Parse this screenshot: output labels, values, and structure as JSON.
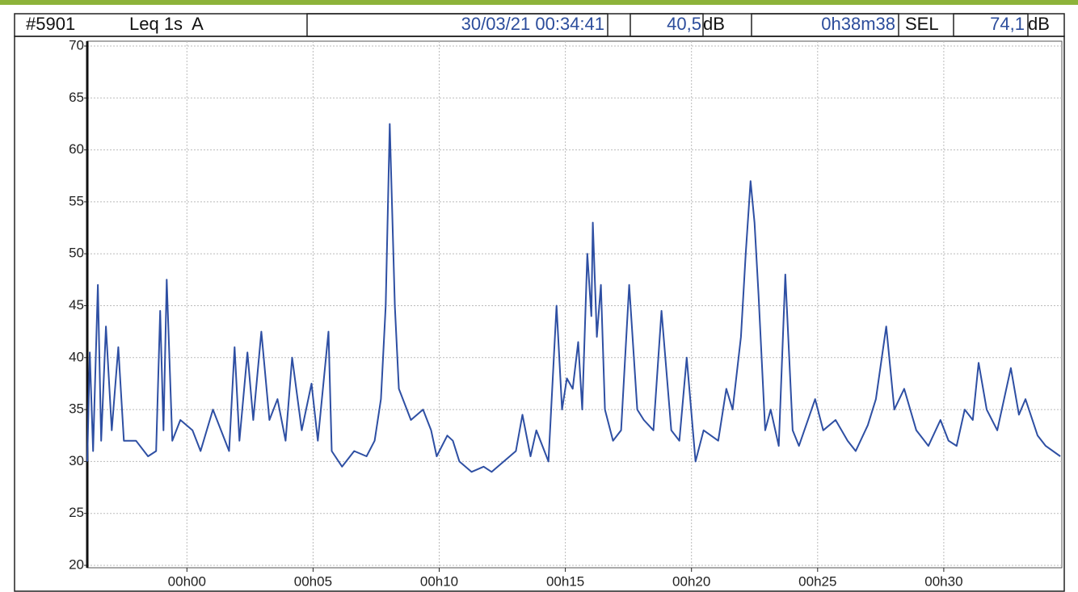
{
  "chart_data": {
    "type": "line",
    "title": "#5901",
    "subtitle": "Leq 1s  A",
    "annotations": [
      "30/03/21 00:34:41",
      "40,5",
      "dB",
      "0h38m38",
      "SEL",
      "74,1",
      "dB"
    ],
    "color": "#2e4fa3",
    "grid": true,
    "xlim": [
      -3.95,
      34.68
    ],
    "ylim": [
      20,
      70
    ],
    "yticks": [
      20,
      25,
      30,
      35,
      40,
      45,
      50,
      55,
      60,
      65,
      70
    ],
    "xticks": [
      {
        "value": 0,
        "label": "00h00"
      },
      {
        "value": 5,
        "label": "00h05"
      },
      {
        "value": 10,
        "label": "00h10"
      },
      {
        "value": 15,
        "label": "00h15"
      },
      {
        "value": 20,
        "label": "00h20"
      },
      {
        "value": 25,
        "label": "00h25"
      },
      {
        "value": 30,
        "label": "00h30"
      }
    ],
    "x": [
      -3.95,
      -3.85,
      -3.72,
      -3.53,
      -3.4,
      -3.21,
      -2.98,
      -2.72,
      -2.5,
      -2.02,
      -1.54,
      -1.22,
      -1.06,
      -0.93,
      -0.8,
      -0.58,
      -0.26,
      0.22,
      0.54,
      1.03,
      1.67,
      1.89,
      2.08,
      2.4,
      2.63,
      2.95,
      3.27,
      3.59,
      3.91,
      4.17,
      4.55,
      4.94,
      5.19,
      5.61,
      5.74,
      6.15,
      6.63,
      7.12,
      7.44,
      7.69,
      7.88,
      8.04,
      8.24,
      8.4,
      8.88,
      9.36,
      9.68,
      9.9,
      10.32,
      10.54,
      10.8,
      11.28,
      11.76,
      12.08,
      12.56,
      13.04,
      13.3,
      13.62,
      13.85,
      14.17,
      14.33,
      14.65,
      14.87,
      15.06,
      15.29,
      15.51,
      15.67,
      15.87,
      16.03,
      16.09,
      16.25,
      16.41,
      16.57,
      16.89,
      17.21,
      17.53,
      17.85,
      18.11,
      18.49,
      18.81,
      19.2,
      19.52,
      19.81,
      20.16,
      20.48,
      21.06,
      21.38,
      21.63,
      21.96,
      22.15,
      22.34,
      22.5,
      22.66,
      22.92,
      23.14,
      23.46,
      23.72,
      24.01,
      24.26,
      24.9,
      25.22,
      25.71,
      26.19,
      26.51,
      26.99,
      27.31,
      27.72,
      28.04,
      28.43,
      28.91,
      29.39,
      29.87,
      30.19,
      30.51,
      30.83,
      31.15,
      31.38,
      31.7,
      32.12,
      32.66,
      32.98,
      33.24,
      33.72,
      34.04,
      34.62
    ],
    "values": [
      30,
      40.5,
      31,
      47,
      32,
      43,
      33,
      41,
      32,
      32,
      30.5,
      31,
      44.5,
      33,
      47.5,
      32,
      34,
      33,
      31,
      35,
      31,
      41,
      32,
      40.5,
      34,
      42.5,
      34,
      36,
      32,
      40,
      33,
      37.5,
      32,
      42.5,
      31,
      29.5,
      31,
      30.5,
      32,
      36,
      45,
      62.5,
      45,
      37,
      34,
      35,
      33,
      30.5,
      32.5,
      32,
      30,
      29,
      29.5,
      29,
      30,
      31,
      34.5,
      30.5,
      33,
      31,
      30,
      45,
      35,
      38,
      37,
      41.5,
      35,
      50,
      44,
      53,
      42,
      47,
      35,
      32,
      33,
      47,
      35,
      34,
      33,
      44.5,
      33,
      32,
      40,
      30,
      33,
      32,
      37,
      35,
      42,
      50,
      57,
      53,
      46,
      33,
      35,
      31.5,
      48,
      33,
      31.5,
      36,
      33,
      34,
      32,
      31,
      33.5,
      36,
      43,
      35,
      37,
      33,
      31.5,
      34,
      32,
      31.5,
      35,
      34,
      39.5,
      35,
      33,
      39,
      34.5,
      36,
      32.5,
      31.5,
      30.5
    ]
  }
}
